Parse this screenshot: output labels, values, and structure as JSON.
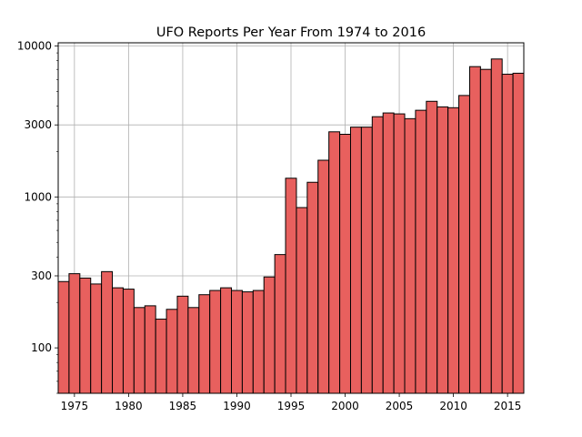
{
  "chart_data": {
    "type": "bar",
    "title": "UFO Reports Per Year From 1974 to 2016",
    "xlabel": "",
    "ylabel": "",
    "y_scale": "log",
    "grid": true,
    "bar_color": "#e8605e",
    "edge_color": "#000000",
    "grid_color": "#b0b0b0",
    "xlim": [
      1973.5,
      2016.5
    ],
    "ylim": [
      50,
      10500
    ],
    "x": [
      1974,
      1975,
      1976,
      1977,
      1978,
      1979,
      1980,
      1981,
      1982,
      1983,
      1984,
      1985,
      1986,
      1987,
      1988,
      1989,
      1990,
      1991,
      1992,
      1993,
      1994,
      1995,
      1996,
      1997,
      1998,
      1999,
      2000,
      2001,
      2002,
      2003,
      2004,
      2005,
      2006,
      2007,
      2008,
      2009,
      2010,
      2011,
      2012,
      2013,
      2014,
      2015,
      2016
    ],
    "values": [
      275,
      310,
      290,
      265,
      320,
      250,
      245,
      185,
      190,
      155,
      180,
      220,
      185,
      225,
      240,
      250,
      240,
      235,
      240,
      295,
      415,
      1330,
      850,
      1250,
      1750,
      2700,
      2600,
      2900,
      2900,
      3400,
      3600,
      3550,
      3300,
      3750,
      4300,
      3950,
      3900,
      4700,
      7300,
      7000,
      8200,
      6500,
      6600
    ],
    "x_ticks": [
      1975,
      1980,
      1985,
      1990,
      1995,
      2000,
      2005,
      2010,
      2015
    ],
    "x_tick_labels": [
      "1975",
      "1980",
      "1985",
      "1990",
      "1995",
      "2000",
      "2005",
      "2010",
      "2015"
    ],
    "y_ticks": [
      100,
      300,
      1000,
      3000,
      10000
    ],
    "y_tick_labels": [
      "100",
      "300",
      "1000",
      "3000",
      "10000"
    ]
  }
}
